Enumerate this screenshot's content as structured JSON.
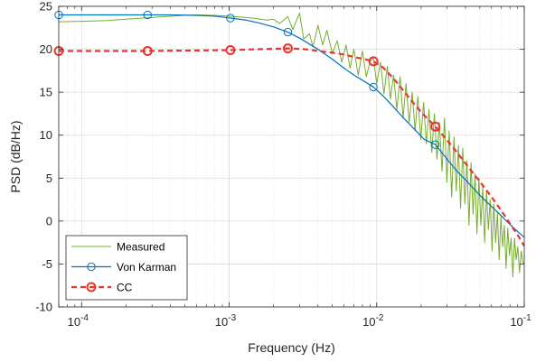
{
  "chart_data": {
    "type": "line",
    "title": "",
    "xlabel": "Frequency (Hz)",
    "ylabel": "PSD (dB/Hz)",
    "xscale": "log",
    "xlim": [
      7e-05,
      0.1
    ],
    "ylim": [
      -10,
      25
    ],
    "yticks": [
      -10,
      -5,
      0,
      5,
      10,
      15,
      20,
      25
    ],
    "xticks": [
      {
        "value": 0.0001,
        "base": "10",
        "exp": "-4"
      },
      {
        "value": 0.001,
        "base": "10",
        "exp": "-3"
      },
      {
        "value": 0.01,
        "base": "10",
        "exp": "-2"
      },
      {
        "value": 0.1,
        "base": "10",
        "exp": "-1"
      }
    ],
    "grid": true,
    "minor_grid": true,
    "legend_position": "bottom-left",
    "series": [
      {
        "name": "Measured",
        "color": "#77AC30",
        "style": "solid",
        "marker": "none",
        "x": [
          7e-05,
          0.0001,
          0.00015,
          0.0002,
          0.0003,
          0.0004,
          0.0005,
          0.0006,
          0.0008,
          0.001,
          0.0012,
          0.0015,
          0.0018,
          0.002,
          0.0022,
          0.0025,
          0.0027,
          0.003,
          0.0032,
          0.0035,
          0.0037,
          0.004,
          0.0043,
          0.0046,
          0.005,
          0.0054,
          0.0058,
          0.0062,
          0.0066,
          0.007,
          0.0075,
          0.008,
          0.0085,
          0.009,
          0.0095,
          0.01,
          0.0106,
          0.0112,
          0.0118,
          0.0124,
          0.013,
          0.0137,
          0.0144,
          0.0151,
          0.0158,
          0.0166,
          0.0174,
          0.0182,
          0.019,
          0.0199,
          0.0208,
          0.0217,
          0.0226,
          0.0236,
          0.0246,
          0.0256,
          0.0266,
          0.0277,
          0.0288,
          0.0299,
          0.031,
          0.0322,
          0.0334,
          0.0346,
          0.0358,
          0.037,
          0.0383,
          0.0396,
          0.0409,
          0.0422,
          0.0436,
          0.045,
          0.0464,
          0.0478,
          0.0493,
          0.0508,
          0.0523,
          0.0539,
          0.0555,
          0.0571,
          0.0588,
          0.0605,
          0.0622,
          0.064,
          0.0658,
          0.0676,
          0.0695,
          0.0714,
          0.0733,
          0.0753,
          0.0773,
          0.0794,
          0.0815,
          0.0837,
          0.0859,
          0.0882,
          0.0905,
          0.0929,
          0.0953,
          0.0978,
          0.1
        ],
        "y": [
          23.2,
          23.25,
          23.35,
          23.5,
          23.7,
          23.85,
          23.95,
          24.0,
          23.95,
          23.85,
          23.75,
          23.6,
          23.4,
          23.5,
          23.0,
          23.8,
          22.3,
          24.2,
          21.2,
          21.8,
          20.3,
          22.8,
          20.5,
          22.2,
          19.5,
          21.0,
          18.5,
          20.5,
          17.8,
          20.0,
          17.0,
          19.8,
          16.8,
          18.5,
          19.0,
          16.0,
          18.5,
          14.8,
          18.0,
          14.2,
          17.0,
          13.0,
          16.8,
          12.0,
          16.0,
          11.5,
          15.0,
          10.5,
          14.5,
          9.5,
          13.8,
          9.0,
          13.0,
          8.0,
          12.5,
          7.2,
          11.5,
          5.8,
          12.0,
          4.5,
          10.5,
          2.8,
          9.8,
          3.5,
          8.8,
          1.5,
          8.5,
          2.0,
          7.0,
          -0.5,
          6.8,
          0.8,
          5.5,
          -1.5,
          5.0,
          -0.5,
          4.0,
          -2.5,
          3.5,
          -1.0,
          2.5,
          -3.5,
          2.0,
          -2.5,
          1.0,
          -4.5,
          0.5,
          -3.0,
          -0.5,
          -5.5,
          -0.8,
          -4.0,
          -2.0,
          -6.5,
          -2.0,
          -4.5,
          -3.0,
          -6.0,
          -3.5,
          -4.8,
          -5.0
        ]
      },
      {
        "name": "Von Karman",
        "color": "#0072BD",
        "style": "solid",
        "marker": "circle",
        "x": [
          7e-05,
          0.0001,
          0.00015,
          0.0002,
          0.00028,
          0.0004,
          0.0006,
          0.0008,
          0.001,
          0.0013,
          0.0016,
          0.002,
          0.0025,
          0.003,
          0.004,
          0.005,
          0.006,
          0.007,
          0.008,
          0.0095,
          0.011,
          0.0125,
          0.015,
          0.018,
          0.021,
          0.025,
          0.03,
          0.035,
          0.04,
          0.05,
          0.06,
          0.07,
          0.08,
          0.09,
          0.1
        ],
        "y": [
          24.0,
          24.0,
          24.0,
          24.0,
          24.0,
          24.0,
          23.95,
          23.85,
          23.65,
          23.4,
          23.05,
          22.6,
          22.0,
          21.3,
          20.0,
          18.85,
          17.8,
          17.0,
          16.4,
          15.6,
          14.6,
          13.6,
          12.1,
          10.7,
          9.5,
          8.9,
          7.2,
          5.8,
          4.8,
          3.0,
          1.7,
          0.6,
          -0.4,
          -1.2,
          -1.9
        ],
        "marker_x": [
          7e-05,
          0.00028,
          0.00102,
          0.0025,
          0.0095,
          0.025
        ]
      },
      {
        "name": "CC",
        "color": "#E8352E",
        "style": "dashed",
        "marker": "circle",
        "x": [
          7e-05,
          0.0001,
          0.0002,
          0.00028,
          0.0005,
          0.00102,
          0.0015,
          0.002,
          0.0025,
          0.003,
          0.0035,
          0.004,
          0.005,
          0.006,
          0.007,
          0.008,
          0.0095,
          0.011,
          0.013,
          0.015,
          0.018,
          0.021,
          0.025,
          0.03,
          0.035,
          0.04,
          0.05,
          0.06,
          0.07,
          0.08,
          0.09,
          0.1
        ],
        "y": [
          19.8,
          19.8,
          19.8,
          19.8,
          19.85,
          19.9,
          20.0,
          20.05,
          20.1,
          20.05,
          19.95,
          19.8,
          19.6,
          19.4,
          19.1,
          18.9,
          18.6,
          17.9,
          16.6,
          15.3,
          13.6,
          12.3,
          11.0,
          9.4,
          8.0,
          6.7,
          4.6,
          2.8,
          1.2,
          -0.3,
          -1.6,
          -2.9
        ],
        "marker_x": [
          7e-05,
          0.00028,
          0.00102,
          0.0025,
          0.0095,
          0.025
        ]
      }
    ]
  }
}
